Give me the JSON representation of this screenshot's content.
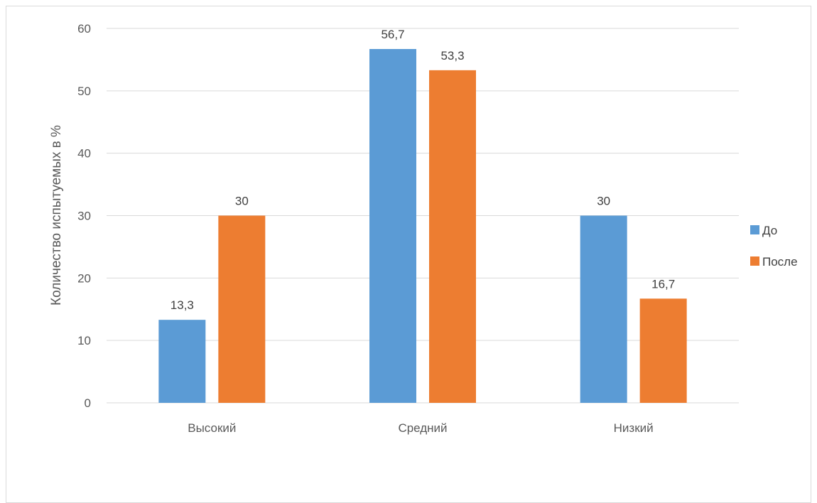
{
  "chart_data": {
    "type": "bar",
    "categories": [
      "Высокий",
      "Средний",
      "Низкий"
    ],
    "series": [
      {
        "name": "До",
        "values": [
          13.3,
          56.7,
          30
        ],
        "labels": [
          "13,3",
          "56,7",
          "30"
        ]
      },
      {
        "name": "После",
        "values": [
          30,
          53.3,
          16.7
        ],
        "labels": [
          "30",
          "53,3",
          "16,7"
        ]
      }
    ],
    "ylabel": "Количество испытуемых в %",
    "xlabel": "",
    "ylim": [
      0,
      60
    ],
    "yticks": [
      0,
      10,
      20,
      30,
      40,
      50,
      60
    ],
    "grid": true,
    "legend_position": "right",
    "colors": {
      "До": "#5b9bd5",
      "После": "#ed7d31"
    }
  }
}
